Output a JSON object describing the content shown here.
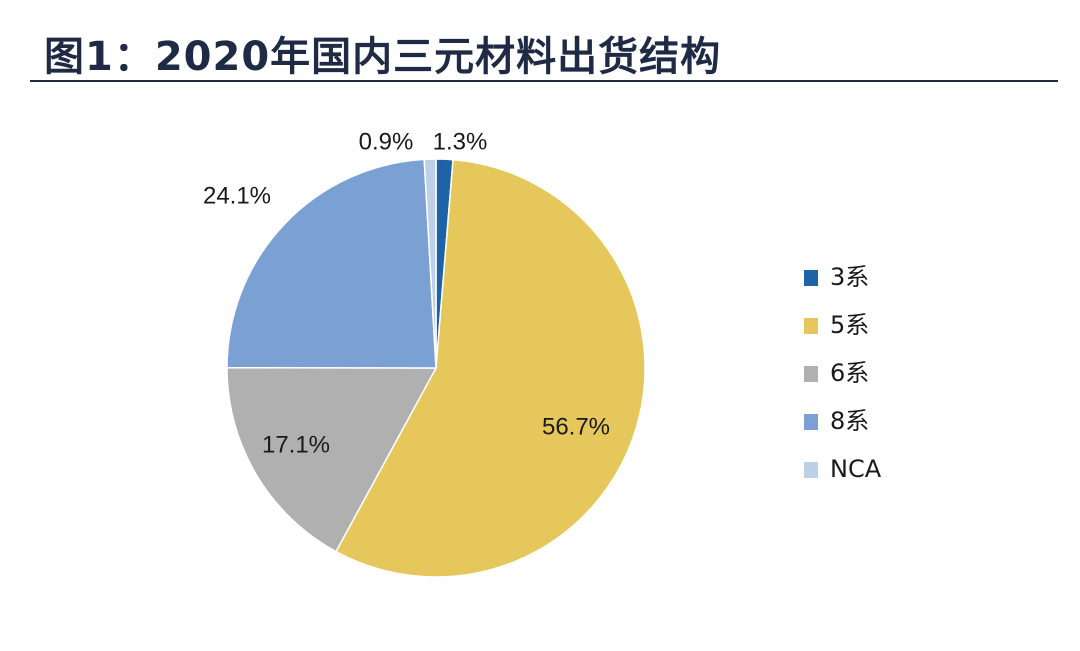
{
  "title": "图1：2020年国内三元材料出货结构",
  "chart_data": {
    "type": "pie",
    "title": "图1：2020年国内三元材料出货结构",
    "slices": [
      {
        "name": "3系",
        "value": 1.3,
        "label": "1.3%",
        "color": "#1f63a7"
      },
      {
        "name": "5系",
        "value": 56.7,
        "label": "56.7%",
        "color": "#e6c75b"
      },
      {
        "name": "6系",
        "value": 17.1,
        "label": "17.1%",
        "color": "#b0b0b0"
      },
      {
        "name": "8系",
        "value": 24.1,
        "label": "24.1%",
        "color": "#7aa0d4"
      },
      {
        "name": "NCA",
        "value": 0.9,
        "label": "0.9%",
        "color": "#bcd0ea"
      }
    ],
    "legend_position": "right"
  }
}
